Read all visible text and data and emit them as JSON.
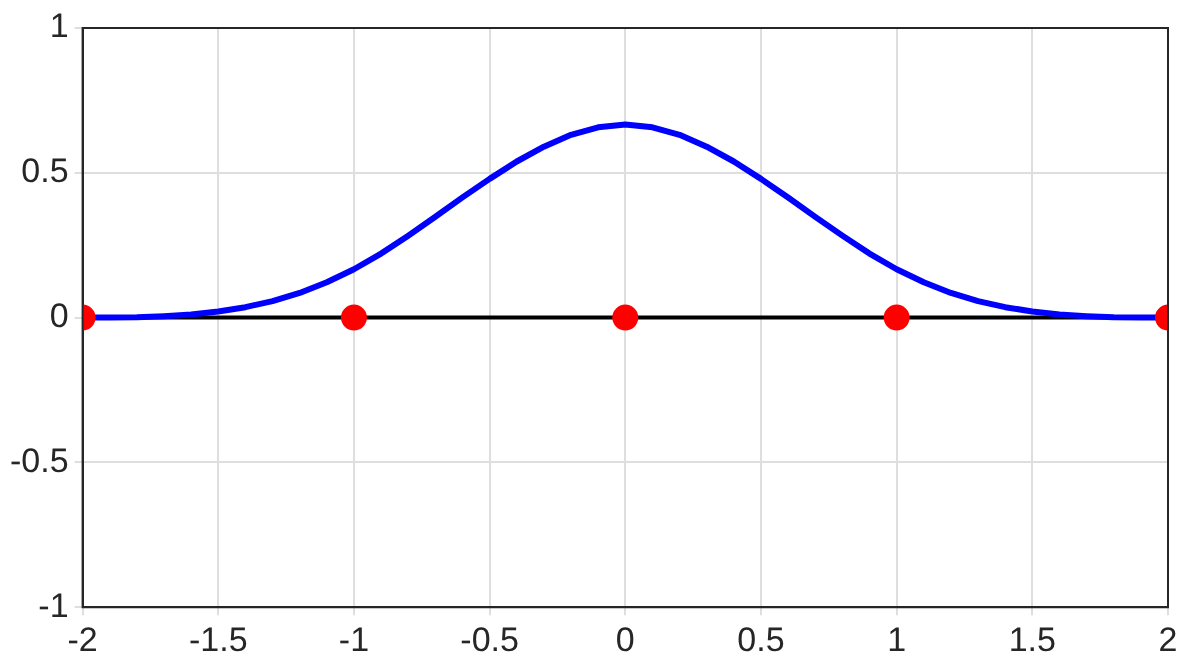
{
  "chart_data": {
    "type": "line",
    "xlim": [
      -2,
      2
    ],
    "ylim": [
      -1,
      1
    ],
    "xticks": [
      -2,
      -1.5,
      -1,
      -0.5,
      0,
      0.5,
      1,
      1.5,
      2
    ],
    "yticks": [
      -1,
      -0.5,
      0,
      0.5,
      1
    ],
    "grid": true,
    "legend": false,
    "ref_lines": [
      {
        "axis": "y",
        "value": 0,
        "color": "#000000"
      }
    ],
    "series": [
      {
        "type": "line",
        "color": "#0000ff",
        "marker": "none",
        "x": [
          -2,
          -1.9,
          -1.8,
          -1.7,
          -1.6,
          -1.5,
          -1.4,
          -1.3,
          -1.2,
          -1.1,
          -1,
          -0.9,
          -0.8,
          -0.7,
          -0.6,
          -0.5,
          -0.4,
          -0.3,
          -0.2,
          -0.1,
          0,
          0.1,
          0.2,
          0.3,
          0.4,
          0.5,
          0.6,
          0.7,
          0.8,
          0.9,
          1,
          1.1,
          1.2,
          1.3,
          1.4,
          1.5,
          1.6,
          1.7,
          1.8,
          1.9,
          2
        ],
        "values": [
          0,
          0,
          0.001,
          0.005,
          0.011,
          0.021,
          0.036,
          0.057,
          0.085,
          0.122,
          0.167,
          0.221,
          0.283,
          0.348,
          0.415,
          0.479,
          0.539,
          0.59,
          0.631,
          0.657,
          0.667,
          0.657,
          0.631,
          0.59,
          0.539,
          0.479,
          0.415,
          0.348,
          0.283,
          0.221,
          0.167,
          0.122,
          0.085,
          0.057,
          0.036,
          0.021,
          0.011,
          0.005,
          0.001,
          0,
          0
        ]
      },
      {
        "type": "scatter",
        "color": "#ff0000",
        "marker": "circle",
        "x": [
          -2,
          -1,
          0,
          1,
          2
        ],
        "values": [
          0,
          0,
          0,
          0,
          0
        ]
      }
    ]
  }
}
